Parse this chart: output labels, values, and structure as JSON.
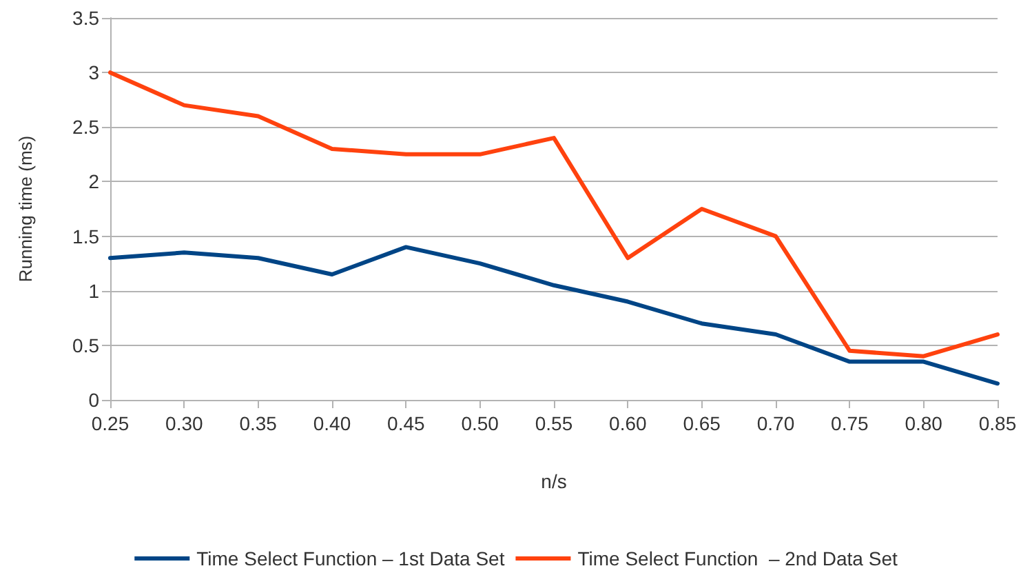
{
  "chart_data": {
    "type": "line",
    "xlabel": "n/s",
    "ylabel": "Running time (ms)",
    "categories": [
      "0.25",
      "0.30",
      "0.35",
      "0.40",
      "0.45",
      "0.50",
      "0.55",
      "0.60",
      "0.65",
      "0.70",
      "0.75",
      "0.80",
      "0.85"
    ],
    "series": [
      {
        "name": "Time Select Function – 1st Data Set",
        "color": "#004586",
        "values": [
          1.3,
          1.35,
          1.3,
          1.15,
          1.4,
          1.25,
          1.05,
          0.9,
          0.7,
          0.6,
          0.35,
          0.35,
          0.15
        ]
      },
      {
        "name": "Time Select Function  – 2nd Data Set",
        "color": "#ff420e",
        "values": [
          3.0,
          2.7,
          2.6,
          2.3,
          2.25,
          2.25,
          2.4,
          1.3,
          1.75,
          1.5,
          0.45,
          0.4,
          0.6
        ]
      }
    ],
    "ylim": [
      0,
      3.5
    ],
    "yticks": [
      0,
      0.5,
      1,
      1.5,
      2,
      2.5,
      3,
      3.5
    ],
    "grid": "y",
    "legend": "bottom",
    "marker": "none",
    "line_style": "solid"
  }
}
